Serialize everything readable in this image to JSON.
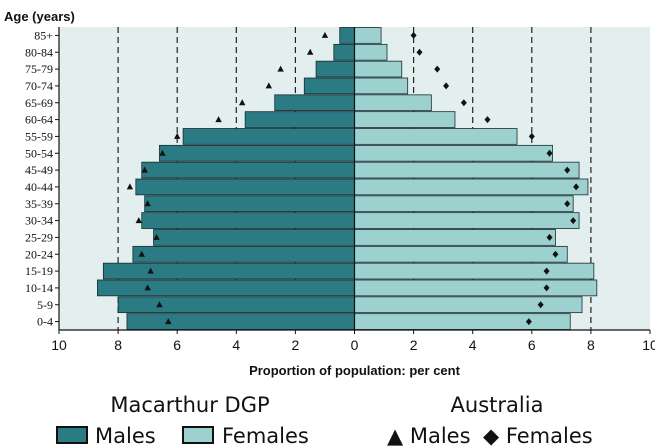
{
  "chart_data": {
    "type": "bar",
    "orientation": "horizontal-population-pyramid",
    "y_title": "Age (years)",
    "xlabel": "Proportion of population: per cent",
    "categories": [
      "85+",
      "80-84",
      "75-79",
      "70-74",
      "65-69",
      "60-64",
      "55-59",
      "50-54",
      "45-49",
      "40-44",
      "35-39",
      "30-34",
      "25-29",
      "20-24",
      "15-19",
      "10-14",
      "5-9",
      "0-4"
    ],
    "x_ticks": [
      "10",
      "8",
      "6",
      "4",
      "2",
      "0",
      "2",
      "4",
      "6",
      "8",
      "10"
    ],
    "xlim": [
      -10,
      10
    ],
    "grid_lines_at": [
      -8,
      -6,
      -4,
      -2,
      2,
      4,
      6,
      8
    ],
    "series": [
      {
        "name": "Males",
        "group": "Macarthur DGP",
        "mark": "bar",
        "side": "left",
        "color": "#2a7b84",
        "values": [
          0.5,
          0.7,
          1.3,
          1.7,
          2.7,
          3.7,
          5.8,
          6.6,
          7.2,
          7.4,
          7.1,
          7.2,
          6.8,
          7.5,
          8.5,
          8.7,
          8.0,
          7.7
        ]
      },
      {
        "name": "Females",
        "group": "Macarthur DGP",
        "mark": "bar",
        "side": "right",
        "color": "#9dd1d0",
        "values": [
          0.9,
          1.1,
          1.6,
          1.8,
          2.6,
          3.4,
          5.5,
          6.7,
          7.6,
          7.9,
          7.4,
          7.6,
          6.8,
          7.2,
          8.1,
          8.2,
          7.7,
          7.3
        ]
      },
      {
        "name": "Males",
        "group": "Australia",
        "mark": "triangle",
        "side": "left",
        "values": [
          1.0,
          1.5,
          2.5,
          2.9,
          3.8,
          4.6,
          6.0,
          6.5,
          7.1,
          7.6,
          7.0,
          7.3,
          6.7,
          7.2,
          6.9,
          7.0,
          6.6,
          6.3
        ]
      },
      {
        "name": "Females",
        "group": "Australia",
        "mark": "diamond",
        "side": "right",
        "values": [
          2.0,
          2.2,
          2.8,
          3.1,
          3.7,
          4.5,
          6.0,
          6.6,
          7.2,
          7.5,
          7.2,
          7.4,
          6.6,
          6.8,
          6.5,
          6.5,
          6.3,
          5.9
        ]
      }
    ],
    "legend": {
      "groups": [
        {
          "title": "Macarthur DGP",
          "items": [
            {
              "label": "Males",
              "swatch": "#2a7b84"
            },
            {
              "label": "Females",
              "swatch": "#9dd1d0"
            }
          ]
        },
        {
          "title": "Australia",
          "items": [
            {
              "label": "Males",
              "symbol": "▲"
            },
            {
              "label": "Females",
              "symbol": "◆"
            }
          ]
        }
      ]
    },
    "plot_background": "#e3efee",
    "grid": "dashed-vertical"
  }
}
